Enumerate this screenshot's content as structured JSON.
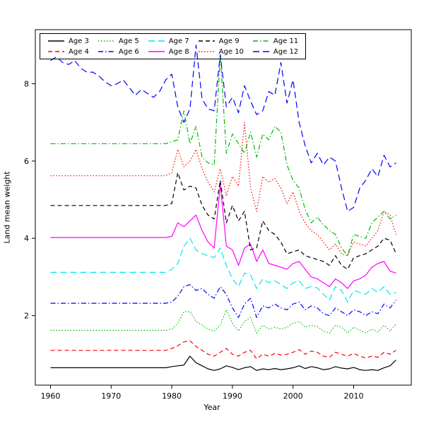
{
  "chart_data": {
    "type": "line",
    "title": "",
    "xlabel": "Year",
    "ylabel": "Land mean weight",
    "xlim": [
      1957.5,
      2019.5
    ],
    "ylim": [
      0.2,
      9.4
    ],
    "xticks": [
      1960,
      1970,
      1980,
      1990,
      2000,
      2010
    ],
    "yticks": [
      2,
      4,
      6,
      8
    ],
    "grid": false,
    "legend_position": "top-left",
    "x": [
      1960,
      1961,
      1962,
      1963,
      1964,
      1965,
      1966,
      1967,
      1968,
      1969,
      1970,
      1971,
      1972,
      1973,
      1974,
      1975,
      1976,
      1977,
      1978,
      1979,
      1980,
      1981,
      1982,
      1983,
      1984,
      1985,
      1986,
      1987,
      1988,
      1989,
      1990,
      1991,
      1992,
      1993,
      1994,
      1995,
      1996,
      1997,
      1998,
      1999,
      2000,
      2001,
      2002,
      2003,
      2004,
      2005,
      2006,
      2007,
      2008,
      2009,
      2010,
      2011,
      2012,
      2013,
      2014,
      2015,
      2016,
      2017
    ],
    "series": [
      {
        "name": "Age 3",
        "color": "#000000",
        "dash": "solid",
        "values": [
          0.65,
          0.65,
          0.65,
          0.65,
          0.65,
          0.65,
          0.65,
          0.65,
          0.65,
          0.65,
          0.65,
          0.65,
          0.65,
          0.65,
          0.65,
          0.65,
          0.65,
          0.65,
          0.65,
          0.65,
          0.68,
          0.7,
          0.72,
          0.95,
          0.78,
          0.7,
          0.62,
          0.58,
          0.62,
          0.7,
          0.66,
          0.6,
          0.65,
          0.68,
          0.58,
          0.62,
          0.6,
          0.63,
          0.6,
          0.62,
          0.65,
          0.7,
          0.63,
          0.68,
          0.65,
          0.6,
          0.62,
          0.68,
          0.64,
          0.62,
          0.66,
          0.6,
          0.58,
          0.6,
          0.58,
          0.65,
          0.7,
          0.85
        ]
      },
      {
        "name": "Age 4",
        "color": "#ff0000",
        "dash": "dashed",
        "values": [
          1.1,
          1.1,
          1.1,
          1.1,
          1.1,
          1.1,
          1.1,
          1.1,
          1.1,
          1.1,
          1.1,
          1.1,
          1.1,
          1.1,
          1.1,
          1.1,
          1.1,
          1.1,
          1.1,
          1.1,
          1.15,
          1.22,
          1.32,
          1.35,
          1.2,
          1.1,
          1.0,
          0.95,
          1.05,
          1.15,
          1.0,
          0.95,
          1.05,
          1.1,
          0.88,
          1.0,
          0.95,
          1.02,
          0.98,
          1.0,
          1.05,
          1.12,
          1.0,
          1.08,
          1.05,
          0.95,
          0.92,
          1.05,
          1.0,
          0.95,
          1.02,
          0.95,
          0.9,
          0.95,
          0.92,
          1.05,
          1.0,
          1.1
        ]
      },
      {
        "name": "Age 5",
        "color": "#00bb00",
        "dash": "dotted",
        "values": [
          1.62,
          1.62,
          1.62,
          1.62,
          1.62,
          1.62,
          1.62,
          1.62,
          1.62,
          1.62,
          1.62,
          1.62,
          1.62,
          1.62,
          1.62,
          1.62,
          1.62,
          1.62,
          1.62,
          1.62,
          1.65,
          1.8,
          2.1,
          2.1,
          1.85,
          1.75,
          1.65,
          1.6,
          1.75,
          2.15,
          1.8,
          1.6,
          1.85,
          1.95,
          1.55,
          1.75,
          1.65,
          1.7,
          1.65,
          1.7,
          1.8,
          1.85,
          1.7,
          1.75,
          1.72,
          1.6,
          1.55,
          1.75,
          1.7,
          1.55,
          1.7,
          1.62,
          1.55,
          1.65,
          1.58,
          1.75,
          1.6,
          1.78
        ]
      },
      {
        "name": "Age 6",
        "color": "#0000ff",
        "dash": "dashdot",
        "values": [
          2.32,
          2.32,
          2.32,
          2.32,
          2.32,
          2.32,
          2.32,
          2.32,
          2.32,
          2.32,
          2.32,
          2.32,
          2.32,
          2.32,
          2.32,
          2.32,
          2.32,
          2.32,
          2.32,
          2.32,
          2.35,
          2.5,
          2.75,
          2.8,
          2.65,
          2.7,
          2.55,
          2.45,
          2.75,
          2.55,
          2.2,
          1.95,
          2.3,
          2.45,
          1.95,
          2.25,
          2.2,
          2.3,
          2.2,
          2.15,
          2.3,
          2.35,
          2.15,
          2.25,
          2.2,
          2.05,
          2.0,
          2.2,
          2.1,
          2.0,
          2.15,
          2.1,
          2.0,
          2.1,
          2.05,
          2.3,
          2.2,
          2.4
        ]
      },
      {
        "name": "Age 7",
        "color": "#00e5ee",
        "dash": "longdash",
        "values": [
          3.12,
          3.12,
          3.12,
          3.12,
          3.12,
          3.12,
          3.12,
          3.12,
          3.12,
          3.12,
          3.12,
          3.12,
          3.12,
          3.12,
          3.12,
          3.12,
          3.12,
          3.12,
          3.12,
          3.12,
          3.2,
          3.35,
          3.8,
          4.0,
          3.7,
          3.6,
          3.55,
          3.5,
          3.75,
          3.3,
          2.95,
          2.75,
          3.1,
          3.05,
          2.7,
          2.95,
          2.85,
          2.9,
          2.8,
          2.7,
          2.85,
          2.9,
          2.7,
          2.75,
          2.72,
          2.55,
          2.4,
          2.75,
          2.65,
          2.35,
          2.65,
          2.6,
          2.55,
          2.7,
          2.6,
          2.75,
          2.55,
          2.6
        ]
      },
      {
        "name": "Age 8",
        "color": "#ff00ff",
        "dash": "solid",
        "values": [
          4.02,
          4.02,
          4.02,
          4.02,
          4.02,
          4.02,
          4.02,
          4.02,
          4.02,
          4.02,
          4.02,
          4.02,
          4.02,
          4.02,
          4.02,
          4.02,
          4.02,
          4.02,
          4.02,
          4.02,
          4.05,
          4.4,
          4.3,
          4.45,
          4.6,
          4.2,
          3.9,
          3.75,
          5.4,
          3.8,
          3.7,
          3.3,
          3.75,
          3.85,
          3.4,
          3.7,
          3.35,
          3.3,
          3.25,
          3.2,
          3.35,
          3.4,
          3.2,
          3.0,
          2.95,
          2.85,
          2.75,
          2.95,
          2.85,
          2.7,
          2.9,
          2.95,
          3.05,
          3.25,
          3.35,
          3.4,
          3.15,
          3.1
        ]
      },
      {
        "name": "Age 9",
        "color": "#000000",
        "dash": "dashed",
        "values": [
          4.85,
          4.85,
          4.85,
          4.85,
          4.85,
          4.85,
          4.85,
          4.85,
          4.85,
          4.85,
          4.85,
          4.85,
          4.85,
          4.85,
          4.85,
          4.85,
          4.85,
          4.85,
          4.85,
          4.85,
          4.9,
          5.7,
          5.25,
          5.35,
          5.3,
          4.85,
          4.6,
          4.5,
          5.5,
          4.4,
          4.85,
          4.45,
          4.7,
          3.7,
          3.75,
          4.45,
          4.2,
          4.1,
          3.9,
          3.6,
          3.65,
          3.7,
          3.55,
          3.5,
          3.45,
          3.4,
          3.3,
          3.55,
          3.3,
          3.2,
          3.5,
          3.55,
          3.6,
          3.7,
          3.8,
          4.0,
          3.95,
          3.6
        ]
      },
      {
        "name": "Age 10",
        "color": "#ff0000",
        "dash": "dotted",
        "values": [
          5.62,
          5.62,
          5.62,
          5.62,
          5.62,
          5.62,
          5.62,
          5.62,
          5.62,
          5.62,
          5.62,
          5.62,
          5.62,
          5.62,
          5.62,
          5.62,
          5.62,
          5.62,
          5.62,
          5.62,
          5.7,
          6.3,
          5.85,
          6.0,
          6.3,
          5.8,
          5.45,
          5.2,
          5.8,
          5.1,
          5.6,
          5.35,
          7.0,
          5.3,
          4.7,
          5.6,
          5.45,
          5.55,
          5.3,
          4.9,
          5.2,
          4.7,
          4.4,
          4.2,
          4.1,
          3.9,
          3.7,
          3.85,
          3.6,
          3.55,
          3.9,
          3.85,
          3.8,
          4.0,
          4.2,
          4.7,
          4.6,
          4.1
        ]
      },
      {
        "name": "Age 11",
        "color": "#00bb00",
        "dash": "dashdot",
        "values": [
          6.45,
          6.45,
          6.45,
          6.45,
          6.45,
          6.45,
          6.45,
          6.45,
          6.45,
          6.45,
          6.45,
          6.45,
          6.45,
          6.45,
          6.45,
          6.45,
          6.45,
          6.45,
          6.45,
          6.45,
          6.5,
          6.55,
          7.3,
          6.45,
          6.9,
          6.1,
          5.95,
          5.9,
          8.75,
          6.2,
          6.7,
          6.45,
          6.2,
          6.75,
          6.1,
          6.7,
          6.55,
          6.9,
          6.75,
          5.9,
          5.5,
          5.3,
          4.75,
          4.4,
          4.55,
          4.35,
          4.2,
          4.1,
          3.75,
          3.55,
          4.1,
          4.05,
          4.0,
          4.4,
          4.55,
          4.7,
          4.5,
          4.6
        ]
      },
      {
        "name": "Age 12",
        "color": "#0000ff",
        "dash": "longdash",
        "values": [
          8.6,
          8.7,
          8.55,
          8.5,
          8.6,
          8.4,
          8.3,
          8.3,
          8.2,
          8.05,
          7.95,
          8.0,
          8.1,
          7.9,
          7.7,
          7.85,
          7.75,
          7.65,
          7.8,
          8.1,
          8.25,
          7.4,
          7.0,
          7.35,
          9.0,
          7.6,
          7.35,
          7.3,
          8.75,
          7.4,
          7.65,
          7.25,
          7.95,
          7.55,
          7.2,
          7.3,
          7.8,
          7.7,
          8.55,
          7.5,
          8.1,
          7.0,
          6.4,
          5.95,
          6.2,
          5.9,
          6.1,
          6.0,
          5.3,
          4.7,
          4.8,
          5.3,
          5.5,
          5.8,
          5.6,
          6.15,
          5.85,
          5.95
        ]
      }
    ]
  }
}
